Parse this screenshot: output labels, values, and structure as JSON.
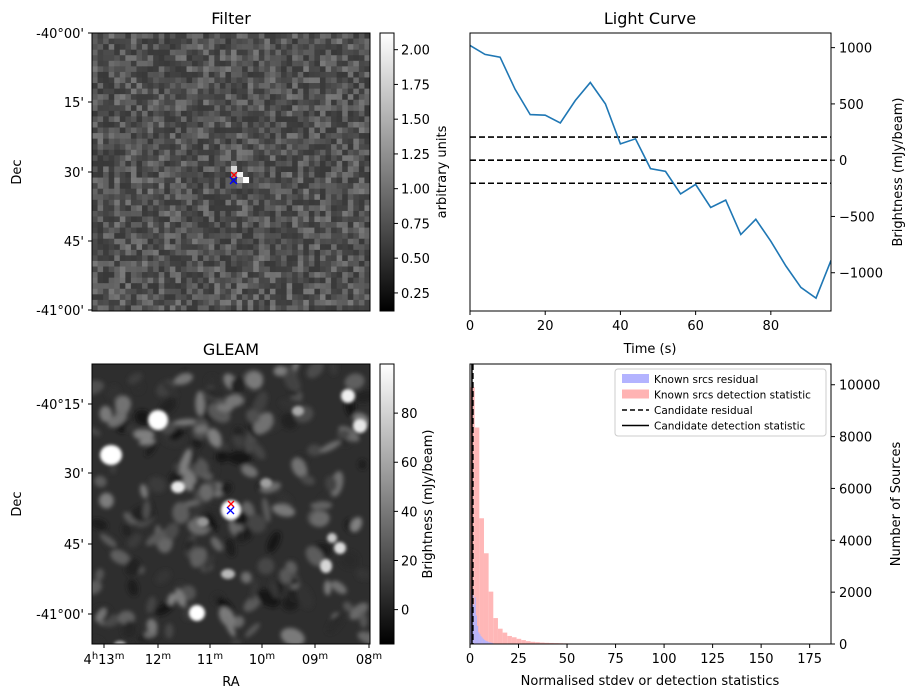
{
  "panels": {
    "filter": {
      "title": "Filter",
      "ylabel": "Dec",
      "yticks": [
        "-40°00'",
        "15'",
        "30'",
        "45'",
        "-41°00'"
      ],
      "colorbar": {
        "label": "arbitrary units",
        "ticks": [
          "2.00",
          "1.75",
          "1.50",
          "1.25",
          "1.00",
          "0.75",
          "0.50",
          "0.25"
        ],
        "range": [
          0.12,
          2.12
        ]
      }
    },
    "light_curve": {
      "title": "Light Curve",
      "xlabel": "Time (s)",
      "ylabel": "Brightness (mJy/beam)",
      "line_color": "#1f77b4"
    },
    "gleam": {
      "title": "GLEAM",
      "xlabel": "RA",
      "ylabel": "Dec",
      "yticks": [
        "-40°15'",
        "30'",
        "45'",
        "-41°00'"
      ],
      "xticks": [
        {
          "main": "4",
          "sup1": "h",
          "main2": "13",
          "sup2": "m"
        },
        {
          "main": "12",
          "sup1": "m"
        },
        {
          "main": "11",
          "sup1": "m"
        },
        {
          "main": "10",
          "sup1": "m"
        },
        {
          "main": "09",
          "sup1": "m"
        },
        {
          "main": "08",
          "sup1": "m"
        }
      ],
      "colorbar": {
        "label": "Brightness (mJy/beam)",
        "ticks": [
          "80",
          "60",
          "40",
          "20",
          "0"
        ],
        "range": [
          -14,
          100
        ]
      }
    },
    "histogram": {
      "xlabel": "Normalised stdev or detection statistics",
      "ylabel": "Number of Sources",
      "legend": [
        {
          "label": "Known srcs residual",
          "kind": "patch",
          "color": "#b3b3ff"
        },
        {
          "label": "Known srcs detection statistic",
          "kind": "patch",
          "color": "#ffb3b3"
        },
        {
          "label": "Candidate residual",
          "kind": "dashed"
        },
        {
          "label": "Candidate detection statistic",
          "kind": "solid"
        }
      ]
    }
  },
  "chart_data": [
    {
      "type": "line",
      "title": "Light Curve",
      "xlabel": "Time (s)",
      "ylabel": "Brightness (mJy/beam)",
      "xlim": [
        0,
        96
      ],
      "ylim": [
        -1340,
        1130
      ],
      "xticks": [
        0,
        20,
        40,
        60,
        80
      ],
      "yticks": [
        1000,
        500,
        0,
        -500,
        -1000
      ],
      "x": [
        0,
        4,
        8,
        12,
        16,
        20,
        24,
        28,
        32,
        36,
        40,
        44,
        48,
        52,
        56,
        60,
        64,
        68,
        72,
        76,
        80,
        84,
        88,
        92,
        96
      ],
      "y": [
        1020,
        940,
        915,
        630,
        405,
        400,
        330,
        530,
        690,
        500,
        145,
        190,
        -75,
        -100,
        -300,
        -215,
        -420,
        -355,
        -660,
        -525,
        -720,
        -940,
        -1130,
        -1225,
        -890
      ],
      "hlines": [
        {
          "y": 0,
          "style": "dashed"
        },
        {
          "y": 205,
          "style": "dashed"
        },
        {
          "y": -205,
          "style": "dashed"
        }
      ]
    },
    {
      "type": "bar",
      "xlabel": "Normalised stdev or detection statistics",
      "ylabel": "Number of Sources",
      "xlim": [
        0,
        186
      ],
      "ylim": [
        0,
        10800
      ],
      "xticks": [
        0,
        25,
        50,
        75,
        100,
        125,
        150,
        175
      ],
      "yticks": [
        0,
        2000,
        4000,
        6000,
        8000,
        10000
      ],
      "bin_width": 2.4,
      "series": [
        {
          "name": "Known srcs residual",
          "color": "#b3b3ff",
          "bin_starts": [
            0,
            0.6,
            1.2,
            1.8,
            2.4,
            3.0,
            3.6,
            4.2,
            4.8,
            5.4,
            6.0,
            6.6,
            7.2,
            7.8,
            8.4,
            9.0,
            9.6,
            10.2,
            10.8,
            11.4
          ],
          "values": [
            1400,
            2100,
            1900,
            1500,
            1800,
            1100,
            700,
            450,
            380,
            300,
            250,
            200,
            160,
            130,
            110,
            90,
            70,
            60,
            50,
            40
          ],
          "bin_width": 0.6
        },
        {
          "name": "Known srcs detection statistic",
          "color": "#ffb3b3",
          "bin_starts": [
            0,
            2.4,
            4.8,
            7.2,
            9.6,
            12,
            14.4,
            16.8,
            19.2,
            21.6,
            24,
            26.4,
            28.8,
            31.2,
            33.6,
            36,
            38.4,
            40.8,
            43.2,
            45.6,
            48,
            50.4,
            52.8,
            60,
            72,
            84,
            96,
            108,
            120
          ],
          "values": [
            9900,
            8350,
            4850,
            3500,
            2020,
            1000,
            590,
            440,
            310,
            260,
            200,
            150,
            110,
            85,
            70,
            55,
            45,
            40,
            35,
            30,
            25,
            20,
            18,
            12,
            8,
            6,
            5,
            4,
            3
          ]
        }
      ],
      "vlines": [
        {
          "x": 1.5,
          "style": "dashed"
        },
        {
          "x": 1.0,
          "style": "solid"
        }
      ]
    }
  ]
}
